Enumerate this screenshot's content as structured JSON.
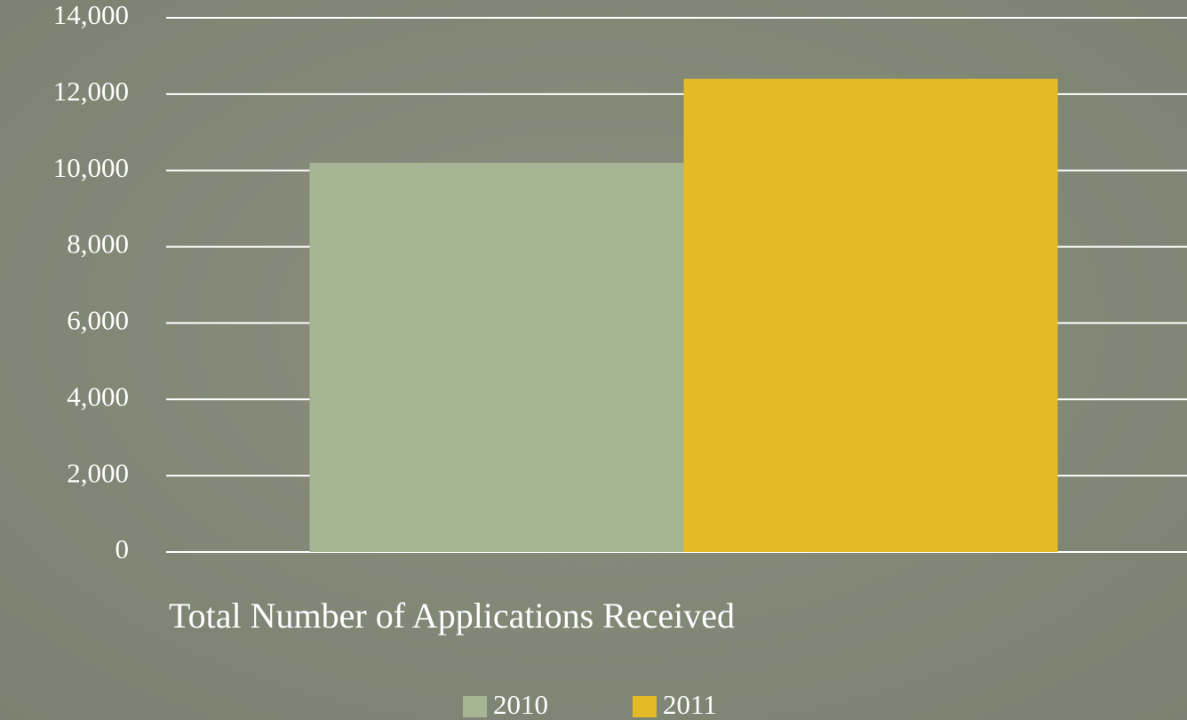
{
  "chart_data": {
    "type": "bar",
    "categories": [
      "Total Number of Applications Received"
    ],
    "series": [
      {
        "name": "2010",
        "color": "#a6b594",
        "values": [
          10200
        ]
      },
      {
        "name": "2011",
        "color": "#e4bb27",
        "values": [
          12400
        ]
      }
    ],
    "ylim": [
      0,
      14000
    ],
    "yticks": [
      0,
      {
        "value": 2000,
        "label": "2,000"
      },
      {
        "value": 4000,
        "label": "4,000"
      },
      {
        "value": 6000,
        "label": "6,000"
      },
      {
        "value": 8000,
        "label": "8,000"
      },
      {
        "value": 10000,
        "label": "10,000"
      },
      {
        "value": 12000,
        "label": "12,000"
      },
      {
        "value": 14000,
        "label": "14,000"
      }
    ],
    "grid": true,
    "legend": "bottom"
  }
}
